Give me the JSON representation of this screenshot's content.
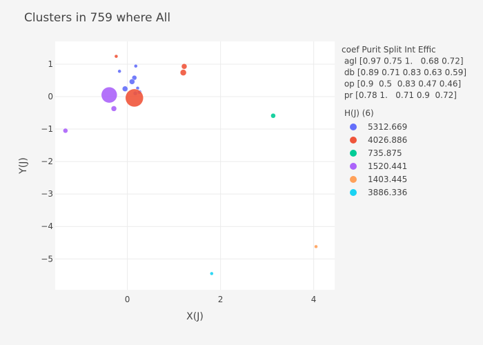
{
  "chart_data": {
    "type": "scatter",
    "title": "Clusters in 759 where All",
    "xlabel": "X(J)",
    "ylabel": "Y(J)",
    "xlim": [
      -1.55,
      4.45
    ],
    "ylim": [
      -5.95,
      1.7
    ],
    "xticks": [
      0,
      2,
      4
    ],
    "xtick_labels": [
      "0",
      "2",
      "4"
    ],
    "yticks": [
      1,
      0,
      -1,
      -2,
      -3,
      -4,
      -5
    ],
    "ytick_labels": [
      "1",
      "0",
      "−1",
      "−2",
      "−3",
      "−4",
      "−5"
    ],
    "grid": true,
    "legend_position": "right",
    "info_lines": [
      "coef Purit Split Int Effic",
      " agl [0.97 0.75 1.   0.68 0.72]",
      " db [0.89 0.71 0.83 0.63 0.59]",
      " op [0.9  0.5  0.83 0.47 0.46]",
      " pr [0.78 1.   0.71 0.9  0.72]"
    ],
    "legend_title": "H(J) (6)",
    "series": [
      {
        "name": "5312.669",
        "color": "#636efa",
        "points": [
          {
            "x": -0.17,
            "y": 0.78,
            "size": 5
          },
          {
            "x": 0.18,
            "y": 0.94,
            "size": 5
          },
          {
            "x": 0.15,
            "y": 0.58,
            "size": 7
          },
          {
            "x": 0.1,
            "y": 0.46,
            "size": 8
          },
          {
            "x": 0.22,
            "y": 0.26,
            "size": 5
          },
          {
            "x": -0.05,
            "y": 0.24,
            "size": 8
          },
          {
            "x": 0.17,
            "y": 0.1,
            "size": 6
          },
          {
            "x": 0.26,
            "y": 0.14,
            "size": 6
          }
        ]
      },
      {
        "name": "4026.886",
        "color": "#ef553b",
        "points": [
          {
            "x": -0.24,
            "y": 1.24,
            "size": 5
          },
          {
            "x": 1.22,
            "y": 0.93,
            "size": 8
          },
          {
            "x": 1.2,
            "y": 0.74,
            "size": 9
          },
          {
            "x": 0.15,
            "y": -0.04,
            "size": 26
          }
        ]
      },
      {
        "name": "735.875",
        "color": "#00cc96",
        "points": [
          {
            "x": 3.13,
            "y": -0.59,
            "size": 7
          }
        ]
      },
      {
        "name": "1520.441",
        "color": "#ab63fa",
        "points": [
          {
            "x": -0.39,
            "y": 0.05,
            "size": 23
          },
          {
            "x": -0.29,
            "y": -0.37,
            "size": 8
          },
          {
            "x": -1.33,
            "y": -1.05,
            "size": 7
          }
        ]
      },
      {
        "name": "1403.445",
        "color": "#ffa15a",
        "points": [
          {
            "x": 4.05,
            "y": -4.62,
            "size": 5
          }
        ]
      },
      {
        "name": "3886.336",
        "color": "#19d3f3",
        "points": [
          {
            "x": 1.81,
            "y": -5.45,
            "size": 5
          }
        ]
      }
    ]
  }
}
